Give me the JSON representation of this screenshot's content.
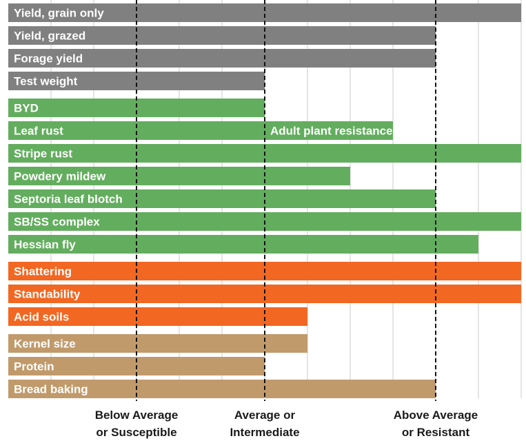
{
  "chart_data": {
    "type": "bar",
    "orientation": "horizontal",
    "xlim": [
      0,
      12
    ],
    "grid": true,
    "reference_lines": [
      {
        "value": 3
      },
      {
        "value": 6
      },
      {
        "value": 10
      }
    ],
    "axis_categories": [
      {
        "position": 3,
        "line1": "Below Average",
        "line2": "or Susceptible"
      },
      {
        "position": 6,
        "line1": "Average or",
        "line2": "Intermediate"
      },
      {
        "position": 10,
        "line1": "Above Average",
        "line2": "or Resistant"
      }
    ],
    "colors": {
      "gray": "#808080",
      "green": "#63ad5e",
      "orange": "#f26722",
      "tan": "#c19a6b",
      "grid": "#c8c8c8",
      "dash": "#111111"
    },
    "groups": [
      {
        "color": "gray",
        "items": [
          {
            "label": "Yield, grain only",
            "value": 12
          },
          {
            "label": "Yield, grazed",
            "value": 10
          },
          {
            "label": "Forage yield",
            "value": 10
          },
          {
            "label": "Test weight",
            "value": 6
          }
        ]
      },
      {
        "color": "green",
        "items": [
          {
            "label": "BYD",
            "value": 6
          },
          {
            "label": "Leaf rust",
            "value": 9,
            "annotation": "Adult plant resistance",
            "annotation_from": 6
          },
          {
            "label": "Stripe rust",
            "value": 12
          },
          {
            "label": "Powdery mildew",
            "value": 8
          },
          {
            "label": "Septoria leaf blotch",
            "value": 10
          },
          {
            "label": "SB/SS complex",
            "value": 12
          },
          {
            "label": "Hessian fly",
            "value": 11
          }
        ]
      },
      {
        "color": "orange",
        "items": [
          {
            "label": "Shattering",
            "value": 12
          },
          {
            "label": "Standability",
            "value": 12
          },
          {
            "label": "Acid soils",
            "value": 7
          }
        ]
      },
      {
        "color": "tan",
        "items": [
          {
            "label": "Kernel size",
            "value": 7
          },
          {
            "label": "Protein",
            "value": 6
          },
          {
            "label": "Bread baking",
            "value": 10
          }
        ]
      }
    ]
  }
}
